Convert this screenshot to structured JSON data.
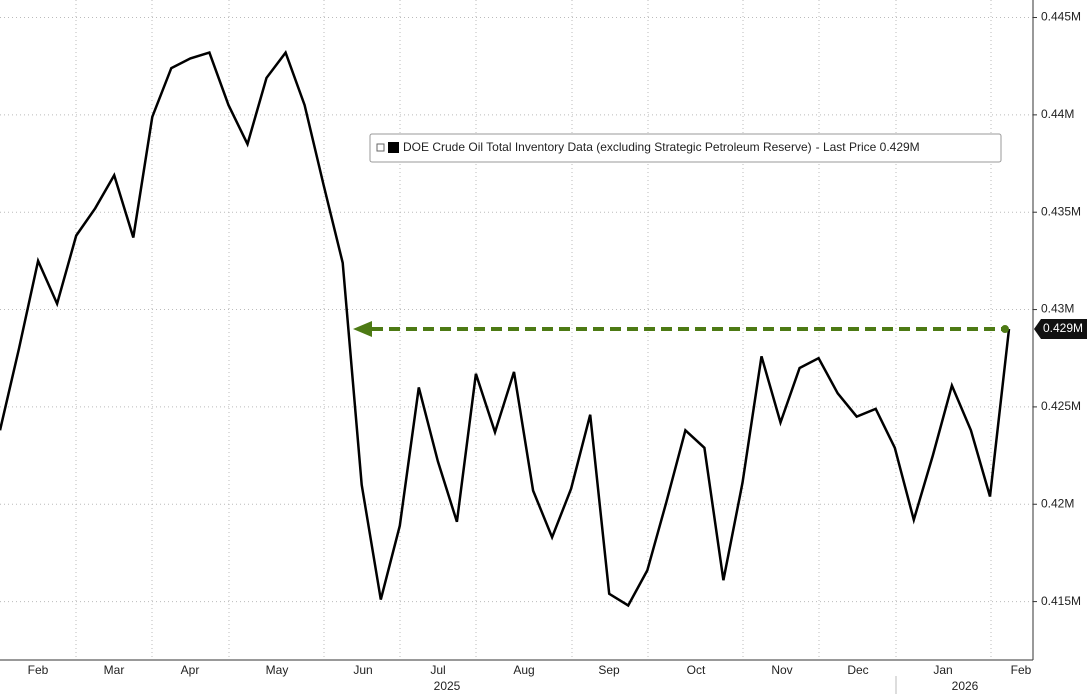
{
  "chart_data": {
    "type": "line",
    "series": [
      {
        "name": "DOE Crude Oil Total Inventory Data (excluding Strategic Petroleum Reserve)",
        "color": "#000000",
        "values": [
          0.4238,
          0.428,
          0.4325,
          0.4303,
          0.4338,
          0.4352,
          0.4369,
          0.4337,
          0.4399,
          0.4424,
          0.4429,
          0.4432,
          0.4405,
          0.4385,
          0.4419,
          0.4432,
          0.4405,
          0.4364,
          0.4324,
          0.421,
          0.4151,
          0.4189,
          0.426,
          0.4222,
          0.4191,
          0.4267,
          0.4237,
          0.4268,
          0.4207,
          0.4183,
          0.4208,
          0.4246,
          0.4154,
          0.4148,
          0.4166,
          0.4201,
          0.4238,
          0.4229,
          0.4161,
          0.4211,
          0.4276,
          0.4242,
          0.427,
          0.4275,
          0.4257,
          0.4245,
          0.4249,
          0.4229,
          0.4192,
          0.4225,
          0.4261,
          0.4238,
          0.4204,
          0.429
        ]
      }
    ],
    "legend_suffix": "- Last Price 0.429M",
    "last_price": {
      "value": 0.429,
      "label": "0.429M"
    },
    "annotation_color": "#4d7a14",
    "ylim": [
      0.412,
      0.4459
    ],
    "yticks": [
      {
        "value": 0.415,
        "label": "0.415M"
      },
      {
        "value": 0.42,
        "label": "0.42M"
      },
      {
        "value": 0.425,
        "label": "0.425M"
      },
      {
        "value": 0.43,
        "label": "0.43M"
      },
      {
        "value": 0.435,
        "label": "0.435M"
      },
      {
        "value": 0.44,
        "label": "0.44M"
      },
      {
        "value": 0.445,
        "label": "0.445M"
      }
    ],
    "grid": true,
    "month_labels": [
      "Feb",
      "Mar",
      "Apr",
      "May",
      "Jun",
      "Jul",
      "Aug",
      "Sep",
      "Oct",
      "Nov",
      "Dec",
      "Jan",
      "Feb"
    ],
    "year_labels": [
      "2025",
      "2026"
    ]
  }
}
